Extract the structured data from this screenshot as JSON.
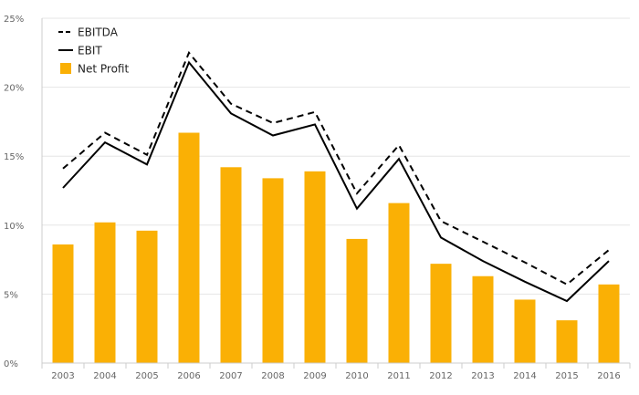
{
  "chart_data": {
    "type": "bar",
    "title": "",
    "xlabel": "",
    "ylabel": "",
    "categories": [
      "2003",
      "2004",
      "2005",
      "2006",
      "2007",
      "2008",
      "2009",
      "2010",
      "2011",
      "2012",
      "2013",
      "2014",
      "2015",
      "2016"
    ],
    "ylim": [
      0,
      25
    ],
    "yticks": [
      {
        "value": 0,
        "label": "0%"
      },
      {
        "value": 5,
        "label": "5%"
      },
      {
        "value": 10,
        "label": "10%"
      },
      {
        "value": 15,
        "label": "15%"
      },
      {
        "value": 20,
        "label": "20%"
      },
      {
        "value": 25,
        "label": "25%"
      }
    ],
    "grid": true,
    "legend_position": "top-left",
    "series": [
      {
        "name": "EBITDA",
        "type": "line",
        "style": "dashed",
        "color": "#000000",
        "values": [
          14.1,
          16.7,
          15.1,
          22.5,
          18.8,
          17.4,
          18.2,
          12.3,
          15.8,
          10.3,
          8.8,
          7.3,
          5.7,
          8.2
        ]
      },
      {
        "name": "EBIT",
        "type": "line",
        "style": "solid",
        "color": "#000000",
        "values": [
          12.7,
          16.0,
          14.4,
          21.8,
          18.1,
          16.5,
          17.3,
          11.2,
          14.8,
          9.1,
          7.4,
          5.9,
          4.5,
          7.4
        ]
      },
      {
        "name": "Net Profit",
        "type": "bar",
        "color": "#FAB005",
        "values": [
          8.6,
          10.2,
          9.6,
          16.7,
          14.2,
          13.4,
          13.9,
          9.0,
          11.6,
          7.2,
          6.3,
          4.6,
          3.1,
          5.7
        ]
      }
    ]
  }
}
